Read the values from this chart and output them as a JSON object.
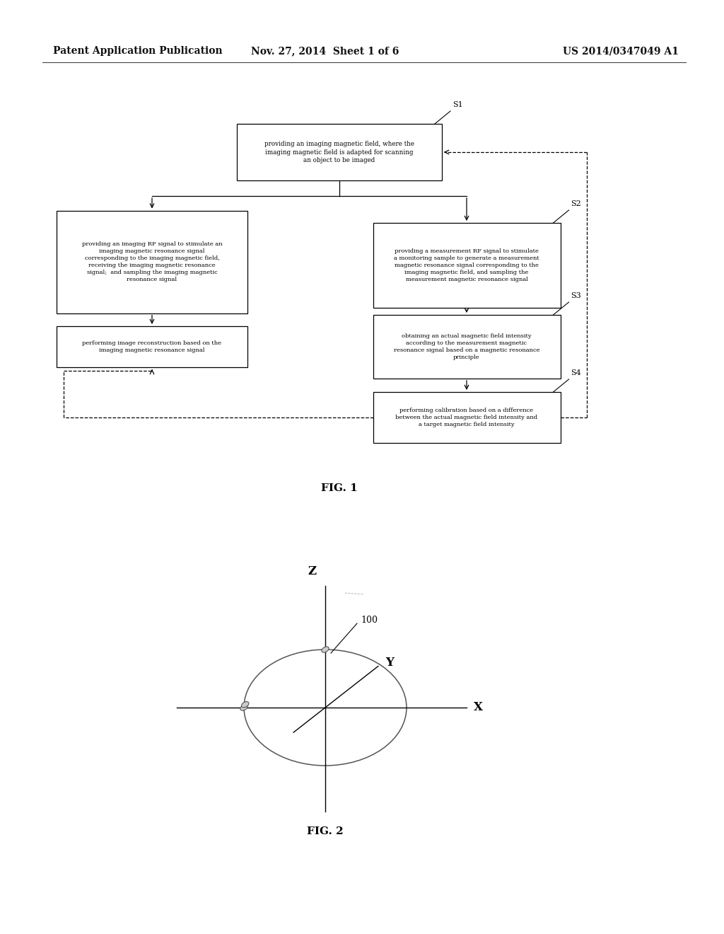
{
  "header_left": "Patent Application Publication",
  "header_center": "Nov. 27, 2014  Sheet 1 of 6",
  "header_right": "US 2014/0347049 A1",
  "fig1_label": "FIG. 1",
  "fig2_label": "FIG. 2",
  "background_color": "#ffffff",
  "s1_text": "providing an imaging magnetic field, where the\nimaging magnetic field is adapted for scanning\nan object to be imaged",
  "s2l_text": "providing an imaging RF signal to stimulate an\nimaging magnetic resonance signal\ncorresponding to the imaging magnetic field,\nreceiving the imaging magnetic resonance\nsignal;  and sampling the imaging magnetic\nresonance signal",
  "s2r_text": "providing a measurement RF signal to stimulate\na monitoring sample to generate a measurement\nmagnetic resonance signal corresponding to the\nimaging magnetic field, and sampling the\nmeasurement magnetic resonance signal",
  "s3l_text": "performing image reconstruction based on the\nimaging magnetic resonance signal",
  "s3r_text": "obtaining an actual magnetic field intensity\naccording to the measurement magnetic\nresonance signal based on a magnetic resonance\nprinciple",
  "s4_text": "performing calibration based on a difference\nbetween the actual magnetic field intensity and\na target magnetic field intensity"
}
